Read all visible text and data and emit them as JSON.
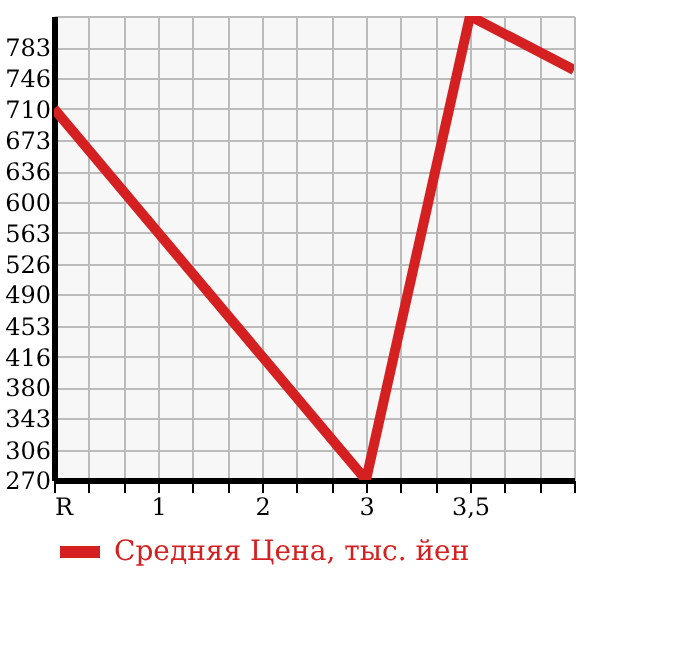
{
  "chart_data": {
    "type": "line",
    "categories": [
      "R",
      null,
      null,
      "1",
      null,
      null,
      "2",
      null,
      null,
      "3",
      null,
      null,
      "3,5",
      null,
      null,
      null
    ],
    "series": [
      {
        "name": "Средняя Цена, тыс. йен",
        "color": "#d42020",
        "values": [
          710,
          null,
          null,
          null,
          null,
          null,
          null,
          null,
          null,
          270,
          null,
          null,
          820,
          null,
          null,
          756
        ]
      }
    ],
    "ylim": [
      270,
      820
    ],
    "yticks": [
      270,
      306,
      343,
      380,
      416,
      453,
      490,
      526,
      563,
      600,
      636,
      673,
      710,
      746,
      783,
      {
        "value": 820,
        "label": null
      }
    ],
    "grid": true,
    "legend": "bottom left",
    "marker": "none",
    "line_style": "solid"
  }
}
